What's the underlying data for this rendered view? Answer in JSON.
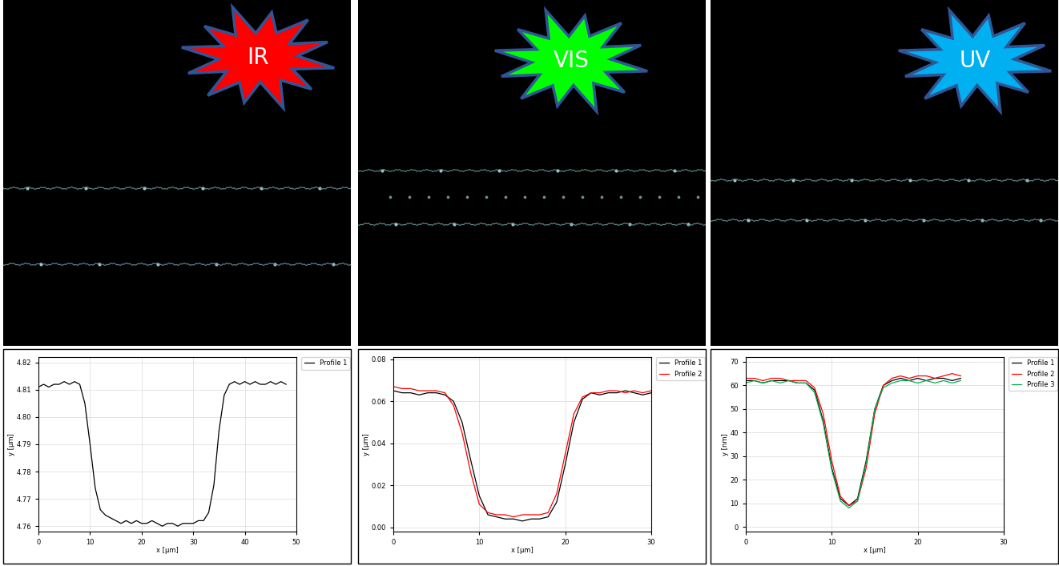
{
  "chart_data": [
    {
      "type": "line",
      "title": "IR",
      "color": "#ff0000",
      "x_label": "x [µm]",
      "y_label": "y [µm]",
      "x": [
        0,
        1,
        2,
        3,
        4,
        5,
        6,
        7,
        8,
        9,
        10,
        11,
        12,
        13,
        14,
        15,
        16,
        17,
        18,
        19,
        20,
        21,
        22,
        23,
        24,
        25,
        26,
        27,
        28,
        29,
        30,
        31,
        32,
        33,
        34,
        35,
        36,
        37,
        38,
        39,
        40,
        41,
        42,
        43,
        44,
        45,
        46,
        47,
        48
      ],
      "series": [
        {
          "name": "Profile 1",
          "color": "#000000",
          "values": [
            4.811,
            4.812,
            4.811,
            4.812,
            4.812,
            4.813,
            4.812,
            4.813,
            4.812,
            4.805,
            4.79,
            4.774,
            4.766,
            4.764,
            4.763,
            4.762,
            4.761,
            4.762,
            4.761,
            4.762,
            4.761,
            4.761,
            4.762,
            4.761,
            4.76,
            4.761,
            4.761,
            4.76,
            4.761,
            4.761,
            4.761,
            4.762,
            4.762,
            4.765,
            4.775,
            4.795,
            4.808,
            4.812,
            4.813,
            4.812,
            4.813,
            4.812,
            4.813,
            4.812,
            4.812,
            4.813,
            4.812,
            4.813,
            4.812
          ]
        }
      ],
      "xlim": [
        0,
        50
      ],
      "ylim": [
        4.758,
        4.822
      ],
      "xticks": [
        0,
        10,
        20,
        30,
        40,
        50
      ],
      "yticks": [
        4.76,
        4.77,
        4.78,
        4.79,
        {
          "value": 4.8,
          "label": "4.80"
        },
        4.81,
        4.82
      ],
      "grid": true,
      "legend": "upper right"
    },
    {
      "type": "line",
      "title": "VIS",
      "color": "#00ff00",
      "x_label": "x [µm]",
      "y_label": "y [µm]",
      "x": [
        0,
        1,
        2,
        3,
        4,
        5,
        6,
        7,
        8,
        9,
        10,
        11,
        12,
        13,
        14,
        15,
        16,
        17,
        18,
        19,
        20,
        21,
        22,
        23,
        24,
        25,
        26,
        27,
        28,
        29,
        30
      ],
      "series": [
        {
          "name": "Profile 1",
          "color": "#000000",
          "values": [
            0.065,
            0.064,
            0.064,
            0.063,
            0.064,
            0.064,
            0.063,
            0.06,
            0.05,
            0.032,
            0.015,
            0.006,
            0.005,
            0.004,
            0.004,
            0.003,
            0.004,
            0.004,
            0.005,
            0.012,
            0.03,
            0.05,
            0.061,
            0.064,
            0.063,
            0.064,
            0.064,
            0.065,
            0.064,
            0.063,
            0.064
          ]
        },
        {
          "name": "Profile 2",
          "color": "#ff0000",
          "values": [
            0.067,
            0.066,
            0.066,
            0.065,
            0.065,
            0.065,
            0.064,
            0.058,
            0.045,
            0.026,
            0.011,
            0.007,
            0.006,
            0.006,
            0.005,
            0.006,
            0.006,
            0.006,
            0.007,
            0.016,
            0.035,
            0.054,
            0.062,
            0.064,
            0.064,
            0.065,
            0.065,
            0.064,
            0.065,
            0.064,
            0.065
          ]
        }
      ],
      "xlim": [
        0,
        30
      ],
      "ylim": [
        -0.002,
        0.081
      ],
      "xticks": [
        0,
        10,
        20,
        30
      ],
      "yticks": [
        {
          "value": 0,
          "label": "0.00"
        },
        0.02,
        0.04,
        0.06,
        0.08
      ],
      "grid": true,
      "legend": "upper right"
    },
    {
      "type": "line",
      "title": "UV",
      "color": "#00b0f0",
      "x_label": "x [µm]",
      "y_label": "y [nm]",
      "x": [
        0,
        1,
        2,
        3,
        4,
        5,
        6,
        7,
        8,
        9,
        10,
        11,
        12,
        13,
        14,
        15,
        16,
        17,
        18,
        19,
        20,
        21,
        22,
        23,
        24,
        25
      ],
      "series": [
        {
          "name": "Profile 1",
          "color": "#000000",
          "values": [
            62,
            62,
            61,
            62,
            62,
            62,
            61,
            61,
            58,
            45,
            25,
            12,
            9,
            12,
            28,
            50,
            60,
            62,
            63,
            62,
            63,
            62,
            63,
            63,
            62,
            63
          ]
        },
        {
          "name": "Profile 2",
          "color": "#ff0000",
          "values": [
            63,
            63,
            62,
            63,
            63,
            62,
            62,
            62,
            59,
            48,
            28,
            13,
            9,
            11,
            25,
            48,
            60,
            63,
            64,
            63,
            64,
            64,
            63,
            64,
            65,
            64
          ]
        },
        {
          "name": "Profile 3",
          "color": "#00b050",
          "values": [
            61,
            62,
            61,
            62,
            61,
            62,
            61,
            61,
            57,
            44,
            24,
            11,
            8,
            11,
            27,
            50,
            59,
            61,
            62,
            62,
            61,
            62,
            61,
            62,
            61,
            62
          ]
        }
      ],
      "xlim": [
        0,
        30
      ],
      "ylim": [
        -2,
        72
      ],
      "xticks": [
        0,
        10,
        20,
        30
      ],
      "yticks": [
        0,
        10,
        20,
        30,
        40,
        50,
        60,
        70
      ],
      "grid": true,
      "legend": "upper right"
    }
  ]
}
